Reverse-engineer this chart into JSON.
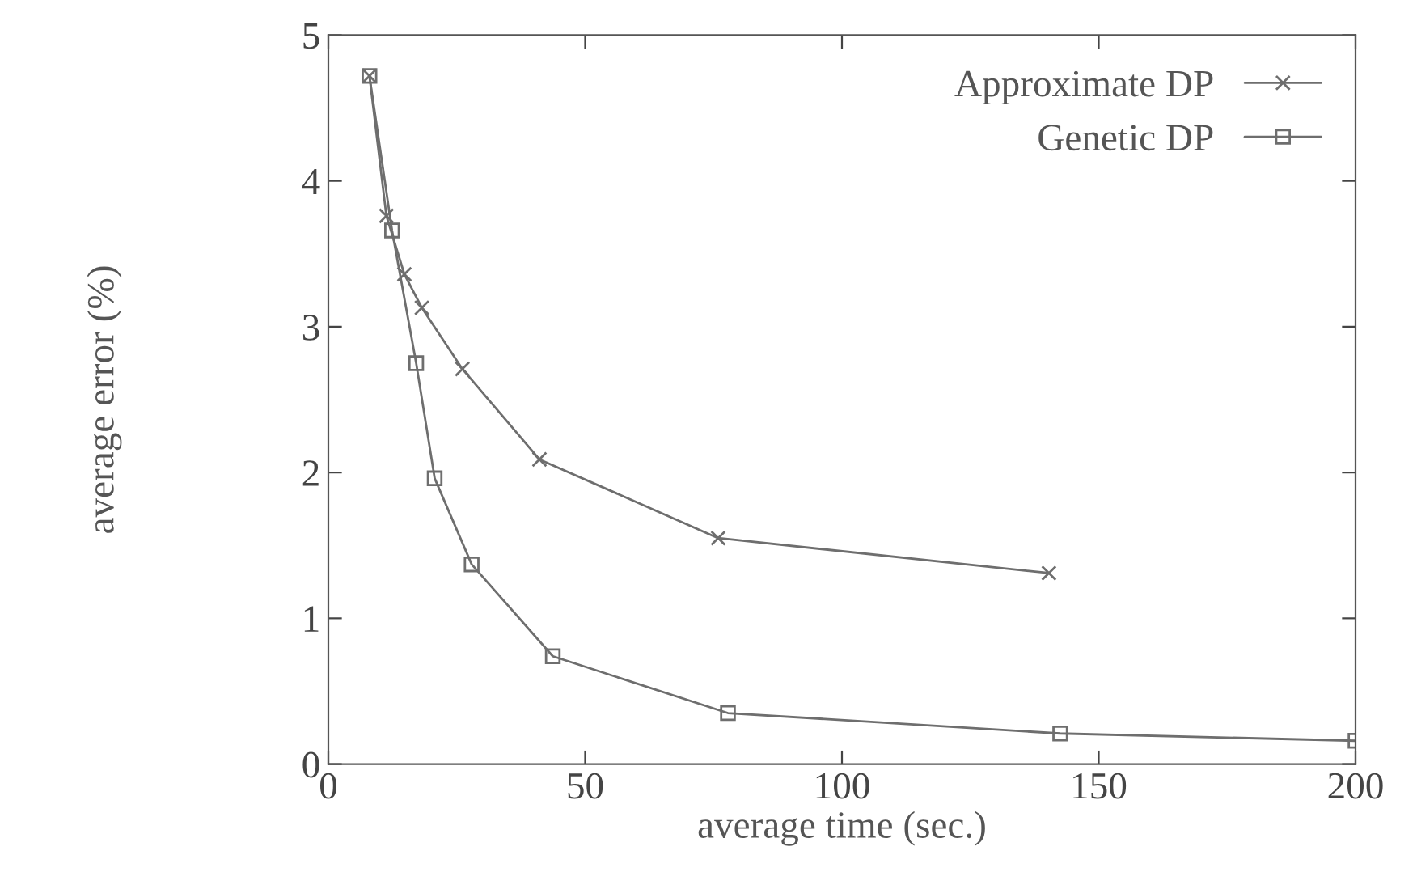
{
  "chart_data": {
    "type": "line",
    "xlabel": "average time (sec.)",
    "ylabel": "average error (%)",
    "xlim": [
      0,
      200
    ],
    "xticks": [
      0,
      50,
      100,
      150,
      200
    ],
    "ylim": [
      0,
      5
    ],
    "yticks": [
      0,
      1,
      2,
      3,
      4,
      5
    ],
    "grid": false,
    "legend": "top right",
    "series": [
      {
        "name": "Approximate DP",
        "color": "#6e6e6e",
        "marker": "cross",
        "x": [
          8.0,
          11.3,
          14.8,
          18.2,
          26.1,
          41.1,
          75.9,
          140.3
        ],
        "values": [
          4.72,
          3.76,
          3.36,
          3.13,
          2.71,
          2.09,
          1.55,
          1.31
        ]
      },
      {
        "name": "Genetic DP",
        "color": "#6e6e6e",
        "marker": "square",
        "x": [
          8.0,
          12.4,
          17.1,
          20.7,
          27.9,
          43.7,
          77.8,
          142.5,
          200
        ],
        "values": [
          4.72,
          3.66,
          2.75,
          1.96,
          1.37,
          0.74,
          0.35,
          0.21,
          0.16
        ]
      }
    ]
  }
}
